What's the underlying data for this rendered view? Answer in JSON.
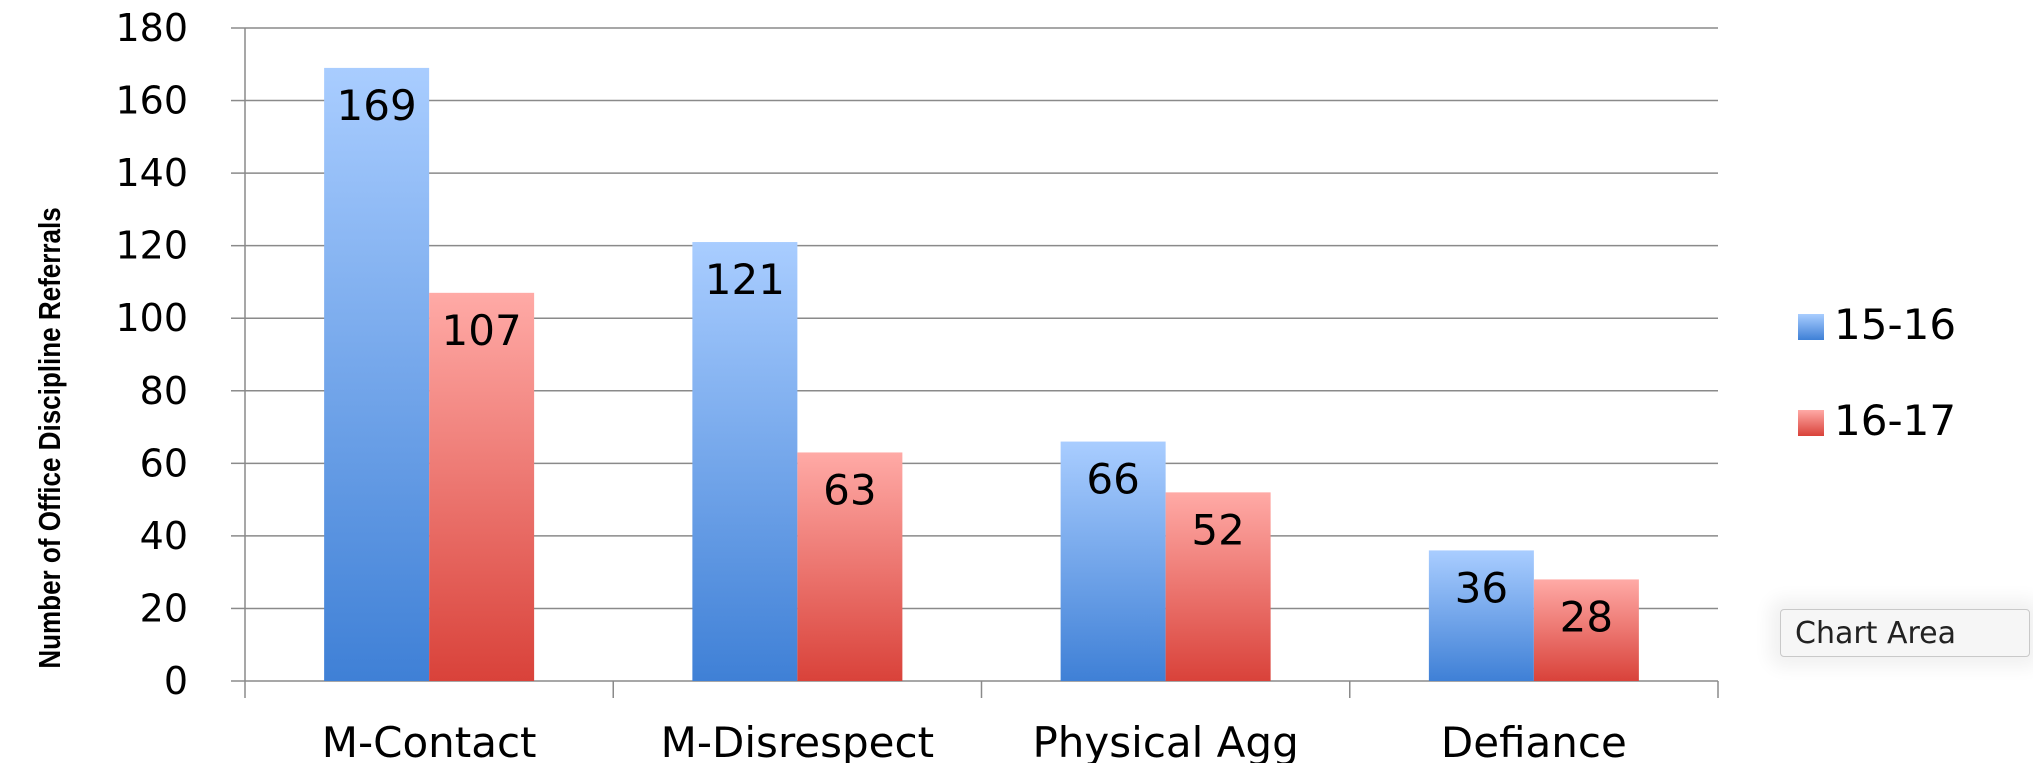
{
  "chart_data": {
    "type": "bar",
    "ylabel": "Number of Office Discipline Referrals",
    "xlabel": "",
    "ylim": [
      0,
      180
    ],
    "yticks": [
      0,
      20,
      40,
      60,
      80,
      100,
      120,
      140,
      160,
      180
    ],
    "grid": true,
    "legend_position": "right",
    "categories": [
      "M-Contact",
      "M-Disrespect",
      "Physical Agg",
      "Defiance"
    ],
    "series": [
      {
        "name": "15-16",
        "values": [
          169,
          121,
          66,
          36
        ],
        "color": "#5b9bea"
      },
      {
        "name": "16-17",
        "values": [
          107,
          63,
          52,
          28
        ],
        "color": "#e8605a"
      }
    ]
  },
  "tooltip": {
    "label": "Chart Area"
  }
}
